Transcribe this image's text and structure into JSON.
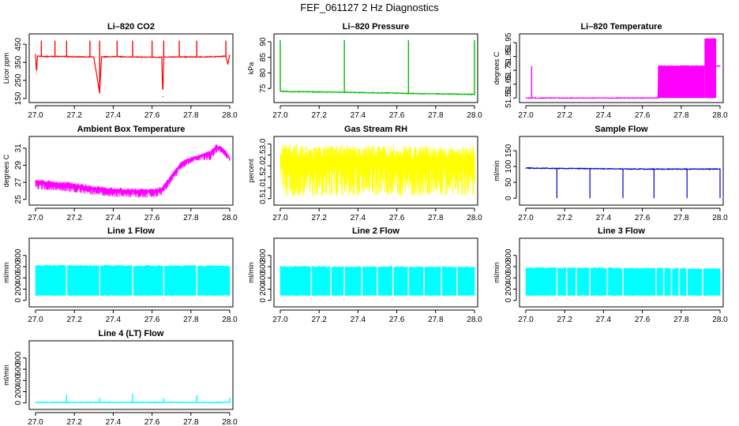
{
  "figure_title": "FEF_061127  2 Hz Diagnostics",
  "chart_data": [
    {
      "type": "line",
      "title": "Li–820 CO2",
      "ylabel": "Licor ppm",
      "x_ticks": [
        "27.0",
        "27.2",
        "27.4",
        "27.6",
        "27.8",
        "28.0"
      ],
      "y_ticks": [
        {
          "v": 150,
          "label": "150"
        },
        {
          "v": 250,
          "label": "250"
        },
        {
          "v": 350,
          "label": "350"
        },
        {
          "v": 450,
          "label": "450"
        }
      ],
      "xlim": [
        27.0,
        28.0
      ],
      "ylim": [
        145,
        490
      ],
      "color": "#ff0000",
      "series": [
        {
          "name": "CO2",
          "x": [
            27.0,
            27.005,
            27.01,
            27.05,
            27.1,
            27.2,
            27.3,
            27.33,
            27.34,
            27.4,
            27.5,
            27.6,
            27.65,
            27.655,
            27.66,
            27.7,
            27.8,
            27.9,
            27.98,
            27.99,
            28.0
          ],
          "y": [
            395,
            290,
            385,
            382,
            383,
            381,
            380,
            180,
            380,
            382,
            380,
            379,
            378,
            160,
            379,
            380,
            380,
            381,
            384,
            340,
            390
          ]
        }
      ],
      "spikes": [
        27.03,
        27.1,
        27.16,
        27.28,
        27.33,
        27.42,
        27.5,
        27.6,
        27.66,
        27.74,
        27.83,
        27.98
      ],
      "spike_top": 470
    },
    {
      "type": "line",
      "title": "Li–820 Pressure",
      "ylabel": "kPa",
      "x_ticks": [
        "27.0",
        "27.2",
        "27.4",
        "27.6",
        "27.8",
        "28.0"
      ],
      "y_ticks": [
        {
          "v": 75,
          "label": "75"
        },
        {
          "v": 80,
          "label": "80"
        },
        {
          "v": 85,
          "label": "85"
        },
        {
          "v": 90,
          "label": "90"
        }
      ],
      "xlim": [
        27.0,
        28.0
      ],
      "ylim": [
        71.5,
        91.5
      ],
      "color": "#00bb00",
      "series": [
        {
          "name": "Pressure",
          "x": [
            27.0,
            27.01,
            27.05,
            27.2,
            27.33,
            27.4,
            27.6,
            27.66,
            27.8,
            27.9,
            28.0
          ],
          "y": [
            74.2,
            74.1,
            74.0,
            73.9,
            73.8,
            73.7,
            73.5,
            73.4,
            73.3,
            73.2,
            73.1
          ]
        }
      ],
      "spikes": [
        27.0,
        27.33,
        27.66,
        28.0
      ],
      "spike_top": 90.5
    },
    {
      "type": "line",
      "title": "Li–820 Temperature",
      "ylabel": "degrees C",
      "x_ticks": [
        "27.0",
        "27.2",
        "27.4",
        "27.6",
        "27.8",
        "28.0"
      ],
      "y_ticks": [
        {
          "v": 51.55,
          "label": "51.55"
        },
        {
          "v": 51.65,
          "label": "51.65"
        },
        {
          "v": 51.75,
          "label": "51.75"
        },
        {
          "v": 51.85,
          "label": "51.85"
        },
        {
          "v": 51.95,
          "label": "51.95"
        }
      ],
      "xlim": [
        27.0,
        28.0
      ],
      "ylim": [
        51.54,
        51.99
      ],
      "color": "#ff00ff",
      "series": [
        {
          "name": "Temperature",
          "x": [
            27.0,
            27.03,
            27.035,
            27.68,
            27.685,
            28.0
          ],
          "y": [
            51.55,
            51.55,
            51.55,
            51.55,
            51.78,
            51.78
          ]
        }
      ],
      "spikes": [
        27.03
      ],
      "spike_top": 51.78,
      "bands": [
        {
          "x0": 27.68,
          "x1": 27.92,
          "lo": 51.55,
          "hi": 51.78
        },
        {
          "x0": 27.92,
          "x1": 27.98,
          "lo": 51.55,
          "hi": 51.98
        }
      ]
    },
    {
      "type": "line",
      "title": "Ambient Box Temperature",
      "ylabel": "degrees C",
      "x_ticks": [
        "27.0",
        "27.2",
        "27.4",
        "27.6",
        "27.8",
        "28.0"
      ],
      "y_ticks": [
        {
          "v": 25,
          "label": "25"
        },
        {
          "v": 27,
          "label": "27"
        },
        {
          "v": 29,
          "label": "29"
        },
        {
          "v": 31,
          "label": "31"
        }
      ],
      "xlim": [
        27.0,
        28.0
      ],
      "ylim": [
        24.7,
        32.0
      ],
      "color": "#ff00ff",
      "series": [
        {
          "name": "upper",
          "x": [
            27.0,
            27.1,
            27.2,
            27.3,
            27.4,
            27.5,
            27.6,
            27.65,
            27.7,
            27.75,
            27.8,
            27.85,
            27.9,
            27.93,
            27.96,
            27.98,
            28.0
          ],
          "y": [
            27.4,
            27.2,
            27.0,
            26.6,
            26.4,
            26.3,
            26.3,
            26.5,
            28.0,
            29.5,
            30.0,
            30.3,
            30.8,
            31.5,
            31.2,
            30.7,
            30.0
          ]
        },
        {
          "name": "lower",
          "x": [
            27.0,
            27.1,
            27.2,
            27.3,
            27.4,
            27.5,
            27.6,
            27.65,
            27.7,
            27.75,
            27.8,
            27.85,
            27.9,
            27.93,
            27.96,
            27.98,
            28.0
          ],
          "y": [
            26.2,
            26.0,
            25.8,
            25.5,
            25.3,
            25.2,
            25.2,
            25.5,
            27.0,
            28.5,
            29.3,
            29.6,
            29.6,
            30.4,
            30.5,
            29.8,
            29.4
          ]
        }
      ]
    },
    {
      "type": "line",
      "title": "Gas Stream RH",
      "ylabel": "percent",
      "x_ticks": [
        "27.0",
        "27.2",
        "27.4",
        "27.6",
        "27.8",
        "28.0"
      ],
      "y_ticks": [
        {
          "v": 0.5,
          "label": "0.5"
        },
        {
          "v": 1.0,
          "label": "1.0"
        },
        {
          "v": 1.5,
          "label": "1.5"
        },
        {
          "v": 2.0,
          "label": "2.0"
        },
        {
          "v": 2.5,
          "label": "2.5"
        },
        {
          "v": 3.0,
          "label": "3.0"
        }
      ],
      "xlim": [
        27.0,
        28.0
      ],
      "ylim": [
        0.35,
        3.2
      ],
      "color": "#ffff00",
      "series": [
        {
          "name": "upper",
          "x": [
            27.0,
            27.25,
            27.5,
            27.75,
            28.0
          ],
          "y": [
            3.0,
            2.95,
            2.95,
            2.9,
            2.9
          ]
        },
        {
          "name": "lower",
          "x": [
            27.0,
            27.25,
            27.5,
            27.75,
            28.0
          ],
          "y": [
            0.6,
            0.6,
            0.6,
            0.6,
            0.6
          ]
        }
      ]
    },
    {
      "type": "line",
      "title": "Sample Flow",
      "ylabel": "ml/min",
      "x_ticks": [
        "27.0",
        "27.2",
        "27.4",
        "27.6",
        "27.8",
        "28.0"
      ],
      "y_ticks": [
        {
          "v": 0,
          "label": "0"
        },
        {
          "v": 50,
          "label": "50"
        },
        {
          "v": 100,
          "label": "100"
        },
        {
          "v": 150,
          "label": "150"
        }
      ],
      "xlim": [
        27.0,
        28.0
      ],
      "ylim": [
        -12,
        185
      ],
      "color": "#0000cc",
      "series": [
        {
          "name": "Sample Flow",
          "x": [
            27.0,
            27.2,
            27.4,
            27.6,
            27.8,
            28.0
          ],
          "y": [
            95,
            94,
            93,
            92,
            92,
            92
          ]
        }
      ],
      "dips": [
        27.16,
        27.33,
        27.5,
        27.66,
        27.83,
        28.0
      ],
      "dip_bottom": 0
    },
    {
      "type": "area",
      "title": "Line 1 Flow",
      "ylabel": "ml/min",
      "x_ticks": [
        "27.0",
        "27.2",
        "27.4",
        "27.6",
        "27.8",
        "28.0"
      ],
      "y_ticks": [
        {
          "v": 0,
          "label": "0"
        },
        {
          "v": 200,
          "label": "200"
        },
        {
          "v": 400,
          "label": "400"
        },
        {
          "v": 600,
          "label": "600"
        },
        {
          "v": 800,
          "label": "800"
        }
      ],
      "xlim": [
        27.0,
        28.0
      ],
      "ylim": [
        -60,
        1050
      ],
      "color": "#00ffff",
      "series": [
        {
          "name": "Line 1 Flow",
          "x": [
            27.0,
            28.0
          ],
          "upper": [
            620,
            610
          ],
          "lower": [
            90,
            90
          ]
        }
      ],
      "gaps": [
        27.16,
        27.33,
        27.5,
        27.66,
        27.83
      ]
    },
    {
      "type": "area",
      "title": "Line 2 Flow",
      "ylabel": "ml/min",
      "x_ticks": [
        "27.0",
        "27.2",
        "27.4",
        "27.6",
        "27.8",
        "28.0"
      ],
      "y_ticks": [
        {
          "v": 0,
          "label": "0"
        },
        {
          "v": 200,
          "label": "200"
        },
        {
          "v": 400,
          "label": "400"
        },
        {
          "v": 600,
          "label": "600"
        },
        {
          "v": 800,
          "label": "800"
        }
      ],
      "xlim": [
        27.0,
        28.0
      ],
      "ylim": [
        -60,
        1050
      ],
      "color": "#00ffff",
      "series": [
        {
          "name": "Line 2 Flow",
          "x": [
            27.0,
            28.0
          ],
          "upper": [
            600,
            590
          ],
          "lower": [
            90,
            90
          ]
        }
      ],
      "gaps": [
        27.16,
        27.26,
        27.33,
        27.42,
        27.5,
        27.58,
        27.66,
        27.74,
        27.83,
        27.91
      ]
    },
    {
      "type": "area",
      "title": "Line 3 Flow",
      "ylabel": "ml/min",
      "x_ticks": [
        "27.0",
        "27.2",
        "27.4",
        "27.6",
        "27.8",
        "28.0"
      ],
      "y_ticks": [
        {
          "v": 0,
          "label": "0"
        },
        {
          "v": 200,
          "label": "200"
        },
        {
          "v": 400,
          "label": "400"
        },
        {
          "v": 600,
          "label": "600"
        },
        {
          "v": 800,
          "label": "800"
        }
      ],
      "xlim": [
        27.0,
        28.0
      ],
      "ylim": [
        -60,
        1050
      ],
      "color": "#00ffff",
      "series": [
        {
          "name": "Line 3 Flow",
          "x": [
            27.0,
            28.0
          ],
          "upper": [
            580,
            560
          ],
          "lower": [
            90,
            90
          ]
        }
      ],
      "gaps": [
        27.16,
        27.21,
        27.26,
        27.33,
        27.42,
        27.5,
        27.67,
        27.71,
        27.75,
        27.79,
        27.83,
        27.91
      ]
    },
    {
      "type": "line",
      "title": "Line 4 (LT) Flow",
      "ylabel": "ml/min",
      "x_ticks": [
        "27.0",
        "27.2",
        "27.4",
        "27.6",
        "27.8",
        "28.0"
      ],
      "y_ticks": [
        {
          "v": 0,
          "label": "0"
        },
        {
          "v": 200,
          "label": "200"
        },
        {
          "v": 400,
          "label": "400"
        },
        {
          "v": 600,
          "label": "600"
        },
        {
          "v": 800,
          "label": "800"
        }
      ],
      "xlim": [
        27.0,
        28.0
      ],
      "ylim": [
        -60,
        1050
      ],
      "color": "#00ffff",
      "series": [
        {
          "name": "Line 4 Flow",
          "x": [
            27.0,
            28.0
          ],
          "y": [
            10,
            10
          ]
        }
      ],
      "spikes": [
        27.16,
        27.33,
        27.5,
        27.66,
        27.83,
        28.0
      ],
      "spike_tops": [
        150,
        90,
        160,
        80,
        140,
        90
      ]
    }
  ]
}
